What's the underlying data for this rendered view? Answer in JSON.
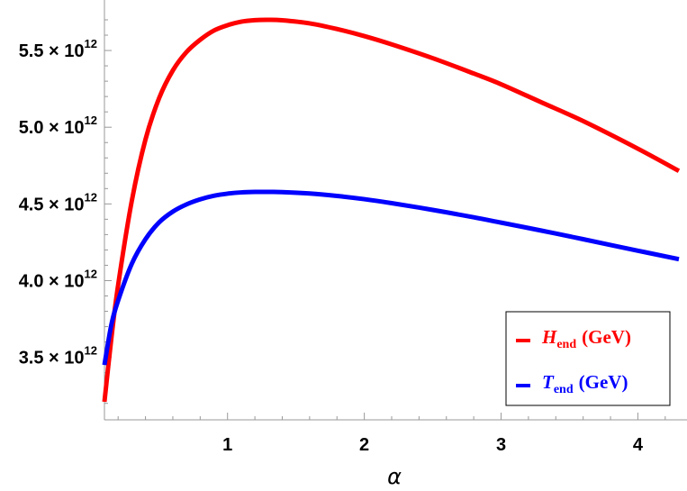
{
  "chart_data": {
    "type": "line",
    "xlabel": "α",
    "ylabel": "",
    "xlim": [
      0.07,
      4.32
    ],
    "ylim": [
      3100000000000.0,
      5780000000000.0
    ],
    "x_ticks": [
      1,
      2,
      3,
      4
    ],
    "y_ticks": [
      {
        "value": 3500000000000.0,
        "mantissa": "3.5",
        "times": "×",
        "base": "10",
        "exponent": "12"
      },
      {
        "value": 4000000000000.0,
        "mantissa": "4.0",
        "times": "×",
        "base": "10",
        "exponent": "12"
      },
      {
        "value": 4500000000000.0,
        "mantissa": "4.5",
        "times": "×",
        "base": "10",
        "exponent": "12"
      },
      {
        "value": 5000000000000.0,
        "mantissa": "5.0",
        "times": "×",
        "base": "10",
        "exponent": "12"
      },
      {
        "value": 5500000000000.0,
        "mantissa": "5.5",
        "times": "×",
        "base": "10",
        "exponent": "12"
      }
    ],
    "grid": false,
    "legend_placement": "bottom-right",
    "series": [
      {
        "name": "H_end (GeV)",
        "legend_main": "H",
        "legend_sub": "end",
        "legend_unit": "(GeV)",
        "color": "#ff0000",
        "x": [
          0.1,
          0.15,
          0.2,
          0.3,
          0.4,
          0.5,
          0.6,
          0.7,
          0.8,
          0.9,
          1.0,
          1.1,
          1.2,
          1.3,
          1.4,
          1.6,
          1.8,
          2.0,
          2.2,
          2.5,
          2.8,
          3.0,
          3.3,
          3.6,
          4.0,
          4.3
        ],
        "y": [
          3210000000000.0,
          3620000000000.0,
          3970000000000.0,
          4520000000000.0,
          4920000000000.0,
          5190000000000.0,
          5370000000000.0,
          5490000000000.0,
          5570000000000.0,
          5630000000000.0,
          5665000000000.0,
          5688000000000.0,
          5698000000000.0,
          5700000000000.0,
          5697000000000.0,
          5677000000000.0,
          5640000000000.0,
          5594000000000.0,
          5540000000000.0,
          5450000000000.0,
          5350000000000.0,
          5280000000000.0,
          5160000000000.0,
          5040000000000.0,
          4860000000000.0,
          4715000000000.0
        ]
      },
      {
        "name": "T_end (GeV)",
        "legend_main": "T",
        "legend_sub": "end",
        "legend_unit": "(GeV)",
        "color": "#0000ff",
        "x": [
          0.1,
          0.15,
          0.2,
          0.3,
          0.4,
          0.5,
          0.6,
          0.7,
          0.8,
          0.9,
          1.0,
          1.1,
          1.2,
          1.3,
          1.4,
          1.6,
          1.8,
          2.0,
          2.2,
          2.5,
          2.8,
          3.0,
          3.3,
          3.6,
          4.0,
          4.3
        ],
        "y": [
          3450000000000.0,
          3710000000000.0,
          3870000000000.0,
          4110000000000.0,
          4270000000000.0,
          4380000000000.0,
          4450000000000.0,
          4497000000000.0,
          4530000000000.0,
          4553000000000.0,
          4567000000000.0,
          4575000000000.0,
          4578000000000.0,
          4578000000000.0,
          4577000000000.0,
          4568000000000.0,
          4552000000000.0,
          4531000000000.0,
          4505000000000.0,
          4461000000000.0,
          4413000000000.0,
          4378000000000.0,
          4325000000000.0,
          4270000000000.0,
          4195000000000.0,
          4140000000000.0
        ]
      }
    ]
  }
}
